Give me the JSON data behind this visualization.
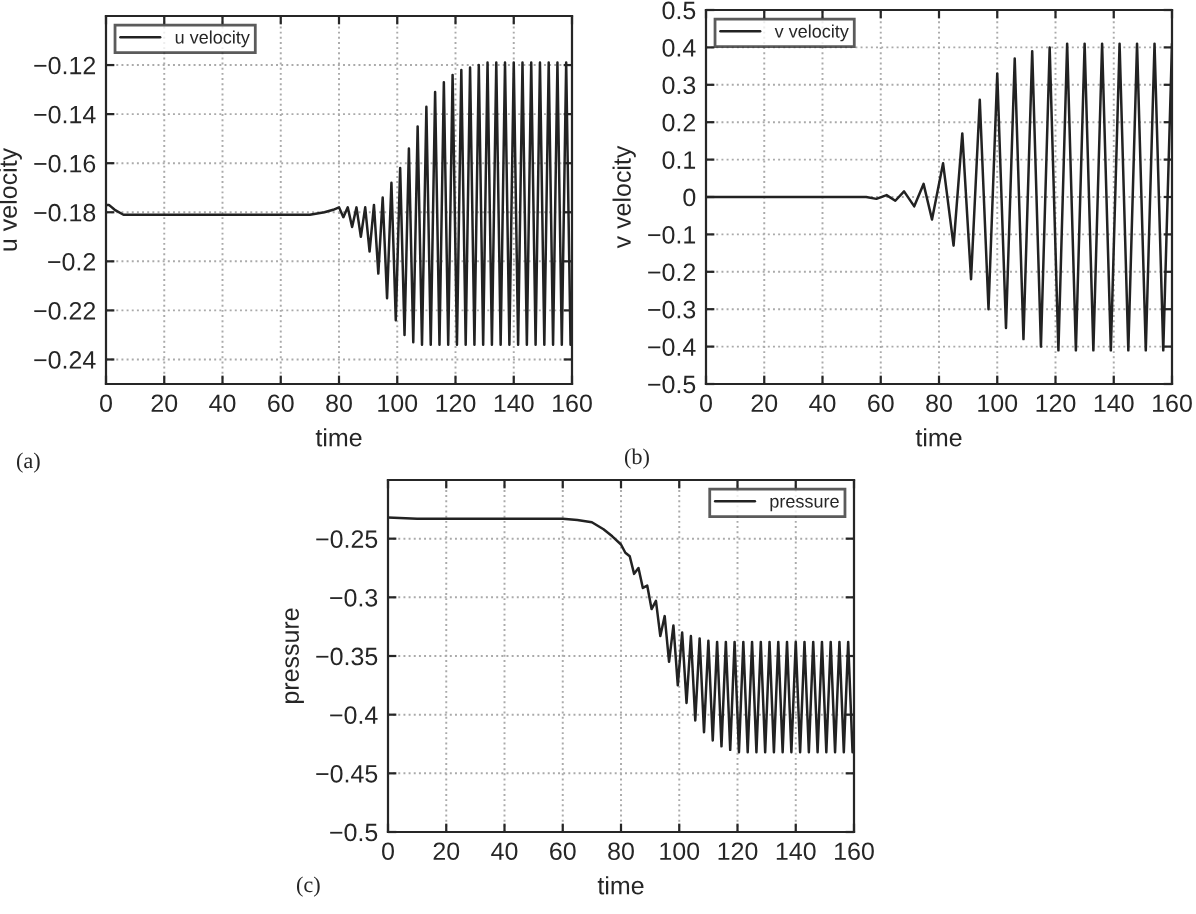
{
  "chart_data": [
    {
      "type": "line",
      "xlabel": "time",
      "ylabel": "u velocity",
      "annotations": [
        "(a)"
      ],
      "xlim": [
        0,
        160
      ],
      "xticks": [
        0,
        20,
        40,
        60,
        80,
        100,
        120,
        140,
        160
      ],
      "ylim": [
        -0.25,
        -0.1
      ],
      "yticks": [
        {
          "value": -0.24,
          "label": "−0.24"
        },
        {
          "value": -0.22,
          "label": "−0.22"
        },
        {
          "value": -0.2,
          "label": "−0.2"
        },
        {
          "value": -0.18,
          "label": "−0.18"
        },
        {
          "value": -0.16,
          "label": "−0.16"
        },
        {
          "value": -0.14,
          "label": "−0.14"
        },
        {
          "value": -0.12,
          "label": "−0.12"
        }
      ],
      "grid": true,
      "legend": "top left",
      "line_style": "solid",
      "marker": "none",
      "series": [
        {
          "name": "u velocity",
          "color": "#222222",
          "x": [
            0,
            1,
            3,
            6,
            20,
            40,
            60,
            70,
            75,
            78,
            80,
            81.5,
            83,
            84.5,
            86,
            87.5,
            89,
            90.5,
            92,
            93.5,
            95,
            96.5,
            98,
            99.5,
            101,
            102.5,
            104,
            105.5,
            107,
            108.5,
            110,
            111.5,
            113,
            114.5,
            116,
            117.5,
            119,
            120.5,
            122,
            123.5,
            125,
            126.5,
            128,
            129.5,
            131,
            132.5,
            134,
            135.5,
            137,
            138.5,
            140,
            141.5,
            143,
            144.5,
            146,
            147.5,
            149,
            150.5,
            152,
            153.5,
            155,
            156.5,
            158,
            159.5
          ],
          "values": [
            -0.177,
            -0.177,
            -0.179,
            -0.181,
            -0.181,
            -0.181,
            -0.181,
            -0.181,
            -0.18,
            -0.179,
            -0.178,
            -0.182,
            -0.178,
            -0.186,
            -0.178,
            -0.19,
            -0.178,
            -0.196,
            -0.177,
            -0.205,
            -0.174,
            -0.215,
            -0.168,
            -0.224,
            -0.162,
            -0.23,
            -0.154,
            -0.233,
            -0.145,
            -0.234,
            -0.137,
            -0.234,
            -0.131,
            -0.234,
            -0.127,
            -0.234,
            -0.124,
            -0.234,
            -0.122,
            -0.234,
            -0.121,
            -0.234,
            -0.12,
            -0.234,
            -0.119,
            -0.234,
            -0.119,
            -0.234,
            -0.119,
            -0.234,
            -0.119,
            -0.234,
            -0.119,
            -0.234,
            -0.119,
            -0.234,
            -0.119,
            -0.234,
            -0.119,
            -0.234,
            -0.119,
            -0.234,
            -0.119,
            -0.234
          ]
        }
      ]
    },
    {
      "type": "line",
      "xlabel": "time",
      "ylabel": "v velocity",
      "annotations": [
        "(b)"
      ],
      "xlim": [
        0,
        160
      ],
      "xticks": [
        0,
        20,
        40,
        60,
        80,
        100,
        120,
        140,
        160
      ],
      "ylim": [
        -0.5,
        0.5
      ],
      "yticks": [
        {
          "value": -0.5,
          "label": "−0.5"
        },
        {
          "value": -0.4,
          "label": "−0.4"
        },
        {
          "value": -0.3,
          "label": "−0.3"
        },
        {
          "value": -0.2,
          "label": "−0.2"
        },
        {
          "value": -0.1,
          "label": "−0.1"
        },
        0,
        0.1,
        0.2,
        0.3,
        0.4,
        0.5
      ],
      "grid": true,
      "legend": "top left",
      "line_style": "solid",
      "marker": "none",
      "series": [
        {
          "name": "v velocity",
          "color": "#222222",
          "x": [
            0,
            20,
            40,
            50,
            55,
            58.5,
            62,
            65,
            68,
            71.5,
            74.7,
            77.6,
            81.4,
            85,
            88,
            91,
            94,
            97,
            100,
            103,
            106,
            109,
            112,
            115,
            118,
            121,
            124,
            127,
            130,
            133,
            136,
            139,
            142,
            145,
            148,
            151,
            154,
            157,
            160
          ],
          "values": [
            0,
            0,
            0,
            0,
            0,
            -0.005,
            0.005,
            -0.01,
            0.015,
            -0.025,
            0.035,
            -0.06,
            0.09,
            -0.13,
            0.17,
            -0.22,
            0.26,
            -0.3,
            0.33,
            -0.35,
            0.37,
            -0.38,
            0.39,
            -0.4,
            0.4,
            -0.41,
            0.41,
            -0.41,
            0.41,
            -0.41,
            0.41,
            -0.41,
            0.41,
            -0.41,
            0.41,
            -0.41,
            0.41,
            -0.41,
            0.41
          ]
        }
      ]
    },
    {
      "type": "line",
      "xlabel": "time",
      "ylabel": "pressure",
      "annotations": [
        "(c)"
      ],
      "xlim": [
        0,
        160
      ],
      "xticks": [
        0,
        20,
        40,
        60,
        80,
        100,
        120,
        140,
        160
      ],
      "ylim": [
        -0.5,
        -0.2
      ],
      "yticks": [
        {
          "value": -0.5,
          "label": "−0.5"
        },
        {
          "value": -0.45,
          "label": "−0.45"
        },
        {
          "value": -0.4,
          "label": "−0.4"
        },
        {
          "value": -0.35,
          "label": "−0.35"
        },
        {
          "value": -0.3,
          "label": "−0.3"
        },
        {
          "value": -0.25,
          "label": "−0.25"
        }
      ],
      "grid": true,
      "legend": "top right",
      "line_style": "solid",
      "marker": "none",
      "series": [
        {
          "name": "pressure",
          "color": "#222222",
          "x": [
            0,
            10,
            30,
            50,
            60,
            65,
            70,
            74,
            77,
            80,
            81.5,
            83,
            84.5,
            86,
            87.5,
            89,
            90.5,
            92,
            93.5,
            95,
            96.5,
            98,
            99.5,
            101,
            102.5,
            104,
            105.5,
            107,
            108.5,
            110,
            111.5,
            113,
            114.5,
            116,
            117.5,
            119,
            120.5,
            122,
            123.5,
            125,
            126.5,
            128,
            129.5,
            131,
            132.5,
            134,
            135.5,
            137,
            138.5,
            140,
            141.5,
            143,
            144.5,
            146,
            147.5,
            149,
            150.5,
            152,
            153.5,
            155,
            156.5,
            158,
            159.5
          ],
          "values": [
            -0.232,
            -0.233,
            -0.233,
            -0.233,
            -0.233,
            -0.234,
            -0.236,
            -0.242,
            -0.248,
            -0.255,
            -0.262,
            -0.265,
            -0.28,
            -0.275,
            -0.292,
            -0.29,
            -0.31,
            -0.303,
            -0.333,
            -0.316,
            -0.355,
            -0.324,
            -0.375,
            -0.33,
            -0.39,
            -0.333,
            -0.405,
            -0.335,
            -0.415,
            -0.337,
            -0.422,
            -0.338,
            -0.427,
            -0.338,
            -0.43,
            -0.338,
            -0.432,
            -0.338,
            -0.432,
            -0.338,
            -0.432,
            -0.338,
            -0.432,
            -0.338,
            -0.432,
            -0.338,
            -0.432,
            -0.338,
            -0.432,
            -0.338,
            -0.432,
            -0.338,
            -0.432,
            -0.338,
            -0.432,
            -0.338,
            -0.432,
            -0.338,
            -0.432,
            -0.338,
            -0.432,
            -0.338,
            -0.432
          ]
        }
      ]
    }
  ]
}
